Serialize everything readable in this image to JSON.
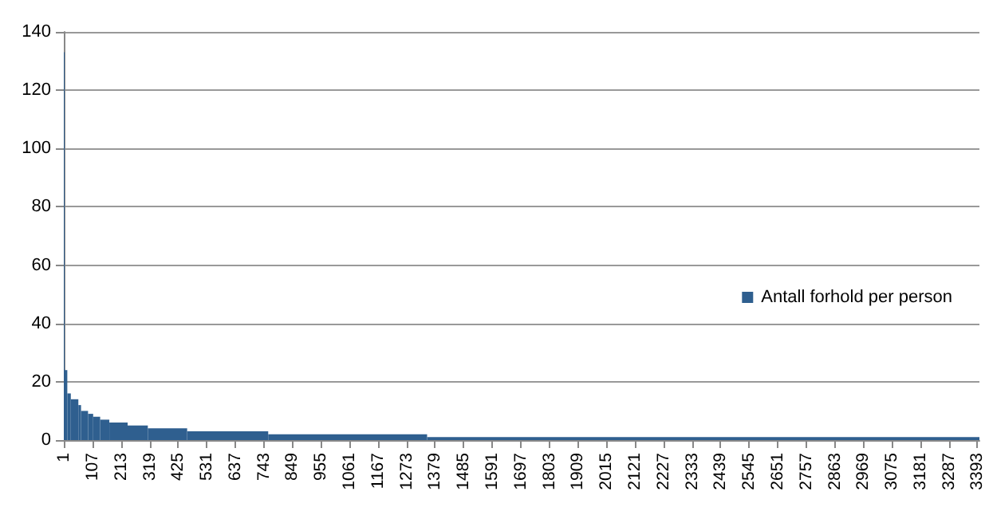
{
  "chart_data": {
    "type": "histogram",
    "bins": [
      0.5,
      1.5,
      13.5,
      26.5,
      54.5,
      64.5,
      90.5,
      109.5,
      135.5,
      169.5,
      237.5,
      312.5,
      458.5,
      759.5,
      1349.5,
      3400.5
    ],
    "series": [
      {
        "name": "Antall forhold per person",
        "color": "#2f5f8f",
        "values": [
          133,
          24,
          16,
          14,
          12,
          10,
          9,
          8,
          7,
          6,
          5,
          4,
          3,
          2,
          1
        ]
      }
    ],
    "xlim": [
      0.5,
      3400.5
    ],
    "xticks": [
      1,
      107,
      213,
      319,
      425,
      531,
      637,
      743,
      849,
      955,
      1061,
      1167,
      1273,
      1379,
      1485,
      1591,
      1697,
      1803,
      1909,
      2015,
      2121,
      2227,
      2333,
      2439,
      2545,
      2651,
      2757,
      2863,
      2969,
      3075,
      3181,
      3287,
      3393
    ],
    "ylim": [
      0,
      140
    ],
    "yticks": [
      0,
      20,
      40,
      60,
      80,
      100,
      120,
      140
    ],
    "grid": "y",
    "legend": "right"
  }
}
